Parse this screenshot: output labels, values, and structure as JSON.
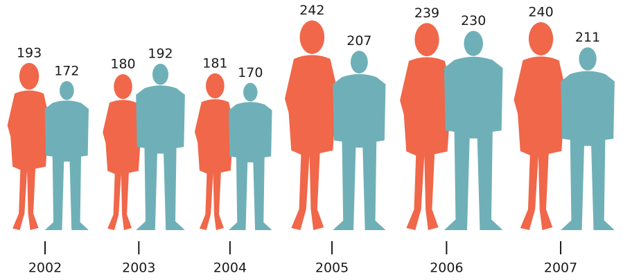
{
  "chart_data": {
    "type": "pictograph",
    "categories": [
      "2002",
      "2003",
      "2004",
      "2005",
      "2006",
      "2007"
    ],
    "series": [
      {
        "color": "#f0674a",
        "values": [
          193,
          180,
          181,
          242,
          239,
          240
        ]
      },
      {
        "color": "#6fb0b8",
        "values": [
          172,
          192,
          170,
          207,
          230,
          211
        ]
      }
    ]
  }
}
